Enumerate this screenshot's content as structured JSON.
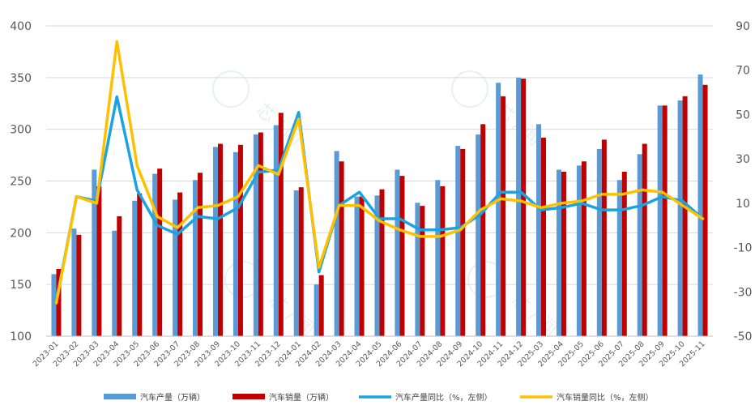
{
  "colors": {
    "production_bar": "#5b9bd5",
    "sales_bar": "#c00000",
    "production_yoy_line": "#1aa3e0",
    "sales_yoy_line": "#ffc000",
    "grid": "#d9d9d9",
    "axis": "#bfbfbf",
    "tick_text": "#595959"
  },
  "watermark": {
    "text": "芯 / 闻",
    "icon": "deer-logo-icon"
  },
  "chart_data": {
    "type": "bar",
    "grid": true,
    "legend_position": "bottom",
    "categories": [
      "2023-01",
      "2023-02",
      "2023-03",
      "2023-04",
      "2023-05",
      "2023-06",
      "2023-07",
      "2023-08",
      "2023-09",
      "2023-10",
      "2023-11",
      "2023-12",
      "2024-01",
      "2024-02",
      "2024-03",
      "2024-04",
      "2024-05",
      "2024-06",
      "2024-07",
      "2024-08",
      "2024-09",
      "2024-10",
      "2024-11",
      "2024-12",
      "2025-03",
      "2025-04",
      "2025-05",
      "2025-06",
      "2025-07",
      "2025-08",
      "2025-09",
      "2025-10",
      "2025-11"
    ],
    "left_axis": {
      "ylim": [
        100,
        400
      ],
      "ticks": [
        100,
        150,
        200,
        250,
        300,
        350,
        400
      ]
    },
    "right_axis": {
      "ylim": [
        -50,
        90
      ],
      "ticks": [
        -50,
        -30,
        -10,
        10,
        30,
        50,
        70,
        90
      ]
    },
    "series": [
      {
        "name": "汽车产量（万辆）",
        "type": "bar",
        "axis": "left",
        "values": [
          160,
          204,
          261,
          202,
          231,
          257,
          232,
          251,
          283,
          278,
          295,
          304,
          241,
          150,
          279,
          235,
          236,
          261,
          229,
          251,
          284,
          295,
          345,
          350,
          305,
          261,
          265,
          281,
          251,
          276,
          323,
          328,
          353
        ]
      },
      {
        "name": "汽车销量（万辆）",
        "type": "bar",
        "axis": "left",
        "values": [
          165,
          198,
          245,
          216,
          238,
          262,
          239,
          258,
          286,
          285,
          297,
          316,
          244,
          159,
          269,
          235,
          242,
          255,
          226,
          245,
          281,
          305,
          332,
          349,
          292,
          259,
          269,
          290,
          259,
          286,
          323,
          332,
          343
        ]
      },
      {
        "name": "汽车产量同比（%，左侧）",
        "type": "line",
        "axis": "right",
        "values": [
          -34,
          13,
          11,
          58,
          16,
          0,
          -4,
          4,
          3,
          8,
          24,
          25,
          51,
          -21,
          9,
          15,
          3,
          3,
          -2,
          -2,
          -1,
          5,
          15,
          15,
          7,
          8,
          10,
          7,
          7,
          9,
          13,
          11,
          3
        ]
      },
      {
        "name": "汽车销量同比（%，左侧）",
        "type": "line",
        "axis": "right",
        "values": [
          -35,
          13,
          10,
          83,
          27,
          4,
          -1,
          8,
          9,
          13,
          27,
          23,
          48,
          -19,
          9,
          9,
          2,
          -2,
          -5,
          -5,
          -2,
          7,
          12,
          11,
          8,
          10,
          11,
          14,
          14,
          16,
          15,
          9,
          3
        ]
      }
    ]
  }
}
